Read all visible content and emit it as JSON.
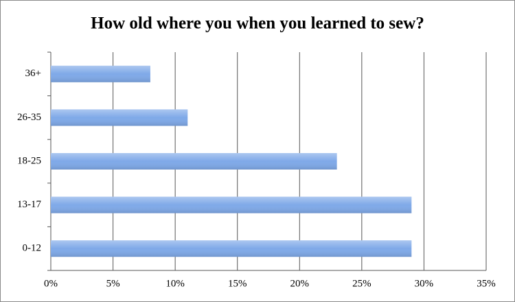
{
  "chart_data": {
    "type": "bar",
    "orientation": "horizontal",
    "title": "How old where you when you learned to sew?",
    "categories": [
      "36+",
      "26-35",
      "18-25",
      "13-17",
      "0-12"
    ],
    "values": [
      8,
      11,
      23,
      29,
      29
    ],
    "color": "#7fa9e8",
    "xlim": [
      0,
      35
    ],
    "xticks": [
      {
        "value": 0,
        "label": "0%"
      },
      {
        "value": 5,
        "label": "5%"
      },
      {
        "value": 10,
        "label": "10%"
      },
      {
        "value": 15,
        "label": "15%"
      },
      {
        "value": 20,
        "label": "20%"
      },
      {
        "value": 25,
        "label": "25%"
      },
      {
        "value": 30,
        "label": "30%"
      },
      {
        "value": 35,
        "label": "35%"
      }
    ],
    "grid": true
  }
}
